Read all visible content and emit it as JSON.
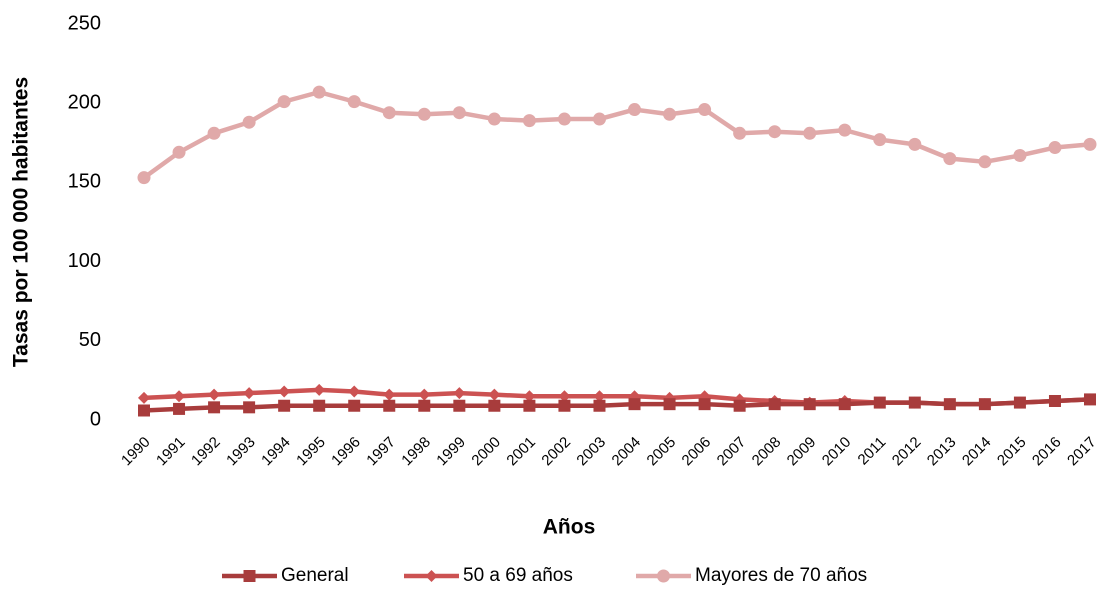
{
  "chart_data": {
    "type": "line",
    "x_label": "Años",
    "y_label": "Tasas por 100 000 habitantes",
    "categories": [
      "1990",
      "1991",
      "1992",
      "1993",
      "1994",
      "1995",
      "1996",
      "1997",
      "1998",
      "1999",
      "2000",
      "2001",
      "2002",
      "2003",
      "2004",
      "2005",
      "2006",
      "2007",
      "2008",
      "2009",
      "2010",
      "2011",
      "2012",
      "2013",
      "2014",
      "2015",
      "2016",
      "2017"
    ],
    "series": [
      {
        "name": "General",
        "color": "#a83c3c",
        "marker": "square",
        "values": [
          6,
          7,
          8,
          8,
          9,
          9,
          9,
          9,
          9,
          9,
          9,
          9,
          9,
          9,
          10,
          10,
          10,
          9,
          10,
          10,
          10,
          11,
          11,
          10,
          10,
          11,
          12,
          13
        ]
      },
      {
        "name": "50 a 69 años",
        "color": "#cc5252",
        "marker": "diamond",
        "values": [
          14,
          15,
          16,
          17,
          18,
          19,
          18,
          16,
          16,
          17,
          16,
          15,
          15,
          15,
          15,
          14,
          15,
          13,
          12,
          11,
          12,
          11,
          11,
          10,
          10,
          11,
          12,
          13
        ]
      },
      {
        "name": "Mayores de 70 años",
        "color": "#e0a9a9",
        "marker": "circle",
        "values": [
          153,
          169,
          181,
          188,
          201,
          207,
          201,
          194,
          193,
          194,
          190,
          189,
          190,
          190,
          196,
          193,
          196,
          181,
          182,
          181,
          183,
          177,
          174,
          165,
          163,
          167,
          172,
          174
        ]
      }
    ],
    "ylim": [
      0,
      250
    ],
    "yticks": [
      0,
      50,
      100,
      150,
      200,
      250
    ],
    "grid": false,
    "legend": "bottom"
  }
}
